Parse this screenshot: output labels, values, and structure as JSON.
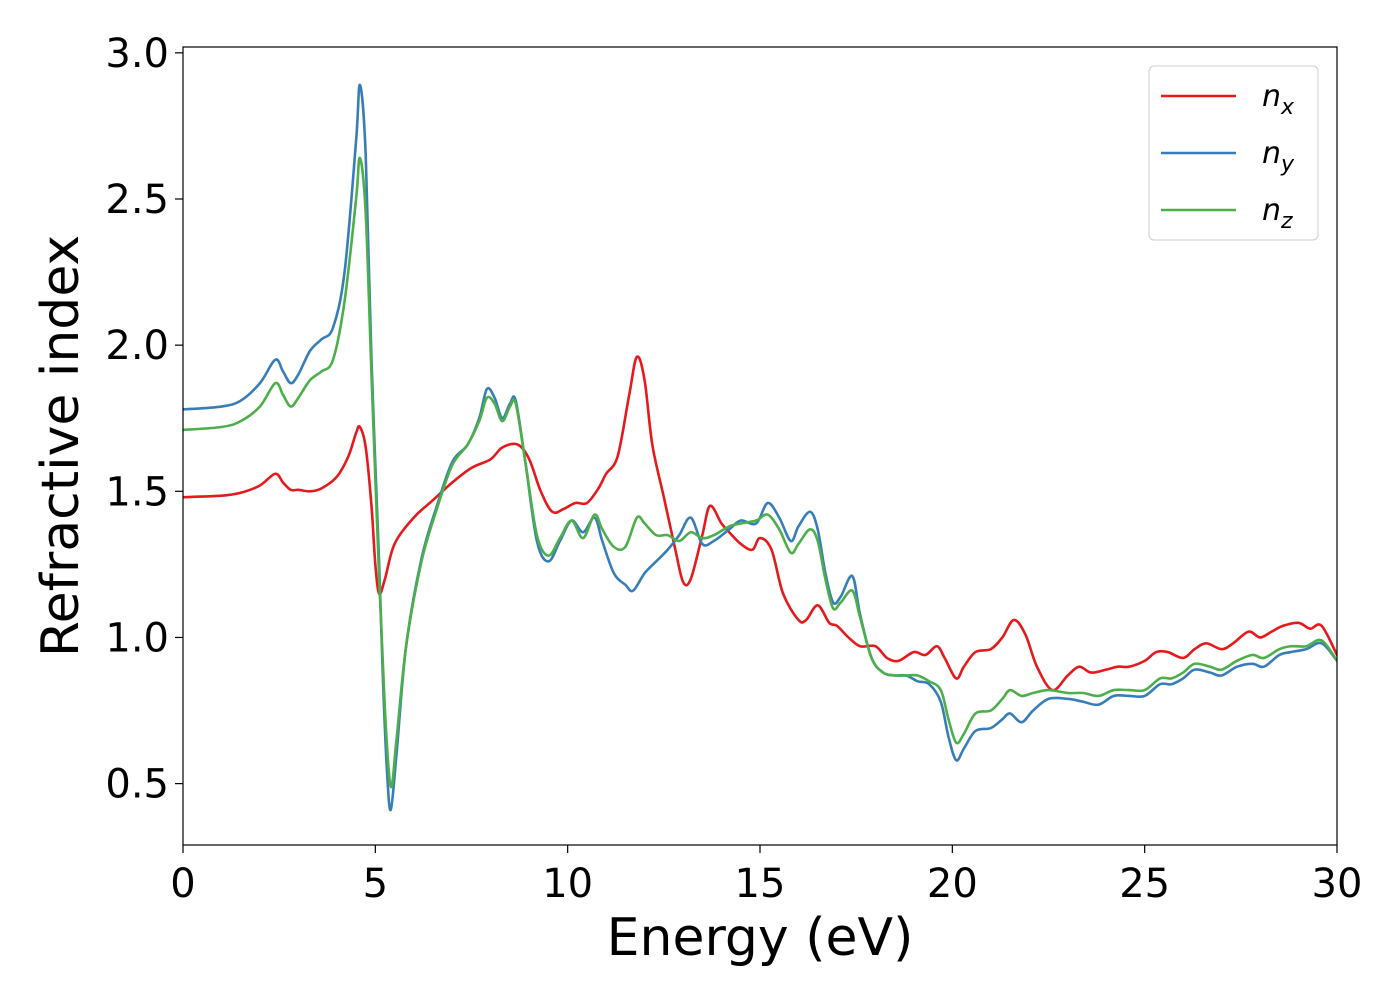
{
  "chart_data": {
    "type": "line",
    "title": "",
    "xlabel": "Energy (eV)",
    "ylabel": "Refractive index",
    "xlim": [
      0,
      30
    ],
    "ylim": [
      0.29,
      3.02
    ],
    "xticks": [
      0,
      5,
      10,
      15,
      20,
      25,
      30
    ],
    "yticks": [
      0.5,
      1.0,
      1.5,
      2.0,
      2.5,
      3.0
    ],
    "xtick_labels": [
      "0",
      "5",
      "10",
      "15",
      "20",
      "25",
      "30"
    ],
    "ytick_labels": [
      "0.5",
      "1.0",
      "1.5",
      "2.0",
      "2.5",
      "3.0"
    ],
    "grid": false,
    "legend_position": "top-right",
    "colors": {
      "nx": "#e41a1c",
      "ny": "#377eb8",
      "nz": "#4daf4a"
    },
    "series": [
      {
        "name": "n_x",
        "legend_main": "n",
        "legend_sub": "x",
        "color": "#e41a1c",
        "points": [
          [
            0,
            1.48
          ],
          [
            1.0,
            1.485
          ],
          [
            1.5,
            1.495
          ],
          [
            2.0,
            1.52
          ],
          [
            2.4,
            1.56
          ],
          [
            2.6,
            1.53
          ],
          [
            2.8,
            1.505
          ],
          [
            3.0,
            1.505
          ],
          [
            3.3,
            1.5
          ],
          [
            3.6,
            1.51
          ],
          [
            4.0,
            1.55
          ],
          [
            4.3,
            1.62
          ],
          [
            4.5,
            1.7
          ],
          [
            4.6,
            1.72
          ],
          [
            4.75,
            1.65
          ],
          [
            4.9,
            1.45
          ],
          [
            5.0,
            1.25
          ],
          [
            5.1,
            1.15
          ],
          [
            5.25,
            1.2
          ],
          [
            5.5,
            1.32
          ],
          [
            6.0,
            1.41
          ],
          [
            6.5,
            1.47
          ],
          [
            7.0,
            1.53
          ],
          [
            7.5,
            1.58
          ],
          [
            8.0,
            1.61
          ],
          [
            8.3,
            1.65
          ],
          [
            8.7,
            1.66
          ],
          [
            9.0,
            1.61
          ],
          [
            9.3,
            1.5
          ],
          [
            9.6,
            1.43
          ],
          [
            9.9,
            1.44
          ],
          [
            10.2,
            1.46
          ],
          [
            10.5,
            1.46
          ],
          [
            10.8,
            1.51
          ],
          [
            11.0,
            1.56
          ],
          [
            11.3,
            1.62
          ],
          [
            11.6,
            1.83
          ],
          [
            11.8,
            1.96
          ],
          [
            12.0,
            1.88
          ],
          [
            12.2,
            1.66
          ],
          [
            12.5,
            1.48
          ],
          [
            12.8,
            1.3
          ],
          [
            13.0,
            1.19
          ],
          [
            13.2,
            1.2
          ],
          [
            13.5,
            1.35
          ],
          [
            13.7,
            1.45
          ],
          [
            14.0,
            1.39
          ],
          [
            14.2,
            1.36
          ],
          [
            14.5,
            1.32
          ],
          [
            14.8,
            1.3
          ],
          [
            15.0,
            1.34
          ],
          [
            15.3,
            1.3
          ],
          [
            15.6,
            1.15
          ],
          [
            16.0,
            1.06
          ],
          [
            16.2,
            1.06
          ],
          [
            16.5,
            1.11
          ],
          [
            16.8,
            1.05
          ],
          [
            17.0,
            1.04
          ],
          [
            17.3,
            1.0
          ],
          [
            17.6,
            0.97
          ],
          [
            18.0,
            0.97
          ],
          [
            18.3,
            0.93
          ],
          [
            18.6,
            0.92
          ],
          [
            19.0,
            0.95
          ],
          [
            19.3,
            0.94
          ],
          [
            19.6,
            0.97
          ],
          [
            19.8,
            0.93
          ],
          [
            20.1,
            0.86
          ],
          [
            20.3,
            0.9
          ],
          [
            20.6,
            0.95
          ],
          [
            21.0,
            0.96
          ],
          [
            21.3,
            1.0
          ],
          [
            21.6,
            1.06
          ],
          [
            21.9,
            1.01
          ],
          [
            22.2,
            0.9
          ],
          [
            22.6,
            0.82
          ],
          [
            23.0,
            0.87
          ],
          [
            23.3,
            0.9
          ],
          [
            23.6,
            0.88
          ],
          [
            24.0,
            0.89
          ],
          [
            24.3,
            0.9
          ],
          [
            24.6,
            0.9
          ],
          [
            25.0,
            0.92
          ],
          [
            25.3,
            0.95
          ],
          [
            25.6,
            0.95
          ],
          [
            26.0,
            0.93
          ],
          [
            26.3,
            0.96
          ],
          [
            26.6,
            0.98
          ],
          [
            27.0,
            0.96
          ],
          [
            27.3,
            0.98
          ],
          [
            27.7,
            1.02
          ],
          [
            28.0,
            1.0
          ],
          [
            28.3,
            1.02
          ],
          [
            28.6,
            1.04
          ],
          [
            29.0,
            1.05
          ],
          [
            29.3,
            1.03
          ],
          [
            29.6,
            1.04
          ],
          [
            30.0,
            0.94
          ]
        ]
      },
      {
        "name": "n_y",
        "legend_main": "n",
        "legend_sub": "y",
        "color": "#377eb8",
        "points": [
          [
            0,
            1.78
          ],
          [
            1.0,
            1.79
          ],
          [
            1.5,
            1.81
          ],
          [
            2.0,
            1.87
          ],
          [
            2.4,
            1.95
          ],
          [
            2.6,
            1.91
          ],
          [
            2.8,
            1.87
          ],
          [
            3.0,
            1.9
          ],
          [
            3.3,
            1.98
          ],
          [
            3.6,
            2.02
          ],
          [
            3.9,
            2.06
          ],
          [
            4.2,
            2.25
          ],
          [
            4.5,
            2.7
          ],
          [
            4.6,
            2.89
          ],
          [
            4.75,
            2.65
          ],
          [
            4.9,
            1.95
          ],
          [
            5.1,
            1.25
          ],
          [
            5.2,
            0.85
          ],
          [
            5.3,
            0.55
          ],
          [
            5.4,
            0.41
          ],
          [
            5.55,
            0.6
          ],
          [
            5.8,
            0.97
          ],
          [
            6.2,
            1.27
          ],
          [
            6.6,
            1.45
          ],
          [
            7.0,
            1.6
          ],
          [
            7.4,
            1.66
          ],
          [
            7.7,
            1.75
          ],
          [
            7.9,
            1.85
          ],
          [
            8.1,
            1.82
          ],
          [
            8.3,
            1.75
          ],
          [
            8.5,
            1.8
          ],
          [
            8.65,
            1.81
          ],
          [
            8.9,
            1.6
          ],
          [
            9.2,
            1.33
          ],
          [
            9.5,
            1.26
          ],
          [
            9.8,
            1.33
          ],
          [
            10.1,
            1.4
          ],
          [
            10.4,
            1.36
          ],
          [
            10.7,
            1.41
          ],
          [
            10.9,
            1.33
          ],
          [
            11.2,
            1.22
          ],
          [
            11.5,
            1.18
          ],
          [
            11.7,
            1.16
          ],
          [
            12.0,
            1.22
          ],
          [
            12.3,
            1.26
          ],
          [
            12.6,
            1.3
          ],
          [
            12.9,
            1.35
          ],
          [
            13.2,
            1.41
          ],
          [
            13.5,
            1.32
          ],
          [
            13.8,
            1.33
          ],
          [
            14.2,
            1.37
          ],
          [
            14.5,
            1.4
          ],
          [
            14.9,
            1.39
          ],
          [
            15.2,
            1.46
          ],
          [
            15.5,
            1.41
          ],
          [
            15.8,
            1.33
          ],
          [
            16.0,
            1.38
          ],
          [
            16.3,
            1.43
          ],
          [
            16.5,
            1.37
          ],
          [
            16.7,
            1.22
          ],
          [
            16.9,
            1.12
          ],
          [
            17.1,
            1.14
          ],
          [
            17.4,
            1.21
          ],
          [
            17.6,
            1.08
          ],
          [
            17.9,
            0.93
          ],
          [
            18.2,
            0.88
          ],
          [
            18.5,
            0.87
          ],
          [
            18.8,
            0.87
          ],
          [
            19.1,
            0.85
          ],
          [
            19.4,
            0.84
          ],
          [
            19.7,
            0.78
          ],
          [
            19.9,
            0.66
          ],
          [
            20.1,
            0.58
          ],
          [
            20.3,
            0.62
          ],
          [
            20.6,
            0.68
          ],
          [
            21.0,
            0.69
          ],
          [
            21.3,
            0.72
          ],
          [
            21.5,
            0.74
          ],
          [
            21.8,
            0.71
          ],
          [
            22.1,
            0.75
          ],
          [
            22.5,
            0.79
          ],
          [
            23.0,
            0.79
          ],
          [
            23.4,
            0.78
          ],
          [
            23.8,
            0.77
          ],
          [
            24.2,
            0.8
          ],
          [
            24.6,
            0.8
          ],
          [
            25.0,
            0.8
          ],
          [
            25.4,
            0.84
          ],
          [
            25.7,
            0.84
          ],
          [
            26.0,
            0.86
          ],
          [
            26.3,
            0.89
          ],
          [
            26.7,
            0.88
          ],
          [
            27.0,
            0.87
          ],
          [
            27.4,
            0.9
          ],
          [
            27.8,
            0.91
          ],
          [
            28.1,
            0.9
          ],
          [
            28.5,
            0.94
          ],
          [
            28.8,
            0.95
          ],
          [
            29.2,
            0.96
          ],
          [
            29.6,
            0.98
          ],
          [
            30.0,
            0.92
          ]
        ]
      },
      {
        "name": "n_z",
        "legend_main": "n",
        "legend_sub": "z",
        "color": "#4daf4a",
        "points": [
          [
            0,
            1.71
          ],
          [
            1.0,
            1.72
          ],
          [
            1.5,
            1.74
          ],
          [
            2.0,
            1.79
          ],
          [
            2.4,
            1.87
          ],
          [
            2.6,
            1.83
          ],
          [
            2.8,
            1.79
          ],
          [
            3.0,
            1.82
          ],
          [
            3.3,
            1.88
          ],
          [
            3.6,
            1.91
          ],
          [
            3.9,
            1.95
          ],
          [
            4.2,
            2.15
          ],
          [
            4.5,
            2.5
          ],
          [
            4.6,
            2.64
          ],
          [
            4.75,
            2.45
          ],
          [
            4.9,
            1.9
          ],
          [
            5.1,
            1.2
          ],
          [
            5.25,
            0.75
          ],
          [
            5.4,
            0.49
          ],
          [
            5.55,
            0.65
          ],
          [
            5.8,
            0.97
          ],
          [
            6.2,
            1.26
          ],
          [
            6.6,
            1.44
          ],
          [
            7.0,
            1.59
          ],
          [
            7.4,
            1.66
          ],
          [
            7.7,
            1.74
          ],
          [
            7.9,
            1.82
          ],
          [
            8.1,
            1.8
          ],
          [
            8.3,
            1.74
          ],
          [
            8.5,
            1.79
          ],
          [
            8.65,
            1.8
          ],
          [
            8.9,
            1.6
          ],
          [
            9.2,
            1.35
          ],
          [
            9.5,
            1.28
          ],
          [
            9.8,
            1.34
          ],
          [
            10.1,
            1.4
          ],
          [
            10.4,
            1.34
          ],
          [
            10.7,
            1.42
          ],
          [
            10.9,
            1.37
          ],
          [
            11.2,
            1.31
          ],
          [
            11.5,
            1.31
          ],
          [
            11.8,
            1.41
          ],
          [
            12.0,
            1.39
          ],
          [
            12.3,
            1.35
          ],
          [
            12.6,
            1.35
          ],
          [
            12.9,
            1.33
          ],
          [
            13.2,
            1.36
          ],
          [
            13.5,
            1.34
          ],
          [
            13.8,
            1.35
          ],
          [
            14.2,
            1.38
          ],
          [
            14.5,
            1.39
          ],
          [
            14.9,
            1.4
          ],
          [
            15.2,
            1.42
          ],
          [
            15.5,
            1.37
          ],
          [
            15.8,
            1.29
          ],
          [
            16.0,
            1.32
          ],
          [
            16.3,
            1.37
          ],
          [
            16.5,
            1.33
          ],
          [
            16.7,
            1.2
          ],
          [
            16.9,
            1.1
          ],
          [
            17.1,
            1.12
          ],
          [
            17.4,
            1.16
          ],
          [
            17.6,
            1.07
          ],
          [
            17.9,
            0.93
          ],
          [
            18.2,
            0.88
          ],
          [
            18.5,
            0.87
          ],
          [
            18.8,
            0.87
          ],
          [
            19.1,
            0.87
          ],
          [
            19.4,
            0.85
          ],
          [
            19.7,
            0.82
          ],
          [
            19.9,
            0.72
          ],
          [
            20.1,
            0.64
          ],
          [
            20.3,
            0.67
          ],
          [
            20.6,
            0.74
          ],
          [
            21.0,
            0.75
          ],
          [
            21.3,
            0.79
          ],
          [
            21.5,
            0.82
          ],
          [
            21.8,
            0.8
          ],
          [
            22.1,
            0.81
          ],
          [
            22.5,
            0.82
          ],
          [
            23.0,
            0.81
          ],
          [
            23.4,
            0.81
          ],
          [
            23.8,
            0.8
          ],
          [
            24.2,
            0.82
          ],
          [
            24.6,
            0.82
          ],
          [
            25.0,
            0.82
          ],
          [
            25.4,
            0.86
          ],
          [
            25.7,
            0.86
          ],
          [
            26.0,
            0.88
          ],
          [
            26.3,
            0.91
          ],
          [
            26.7,
            0.9
          ],
          [
            27.0,
            0.89
          ],
          [
            27.4,
            0.92
          ],
          [
            27.8,
            0.94
          ],
          [
            28.1,
            0.93
          ],
          [
            28.5,
            0.96
          ],
          [
            28.8,
            0.97
          ],
          [
            29.2,
            0.97
          ],
          [
            29.6,
            0.99
          ],
          [
            30.0,
            0.92
          ]
        ]
      }
    ]
  }
}
